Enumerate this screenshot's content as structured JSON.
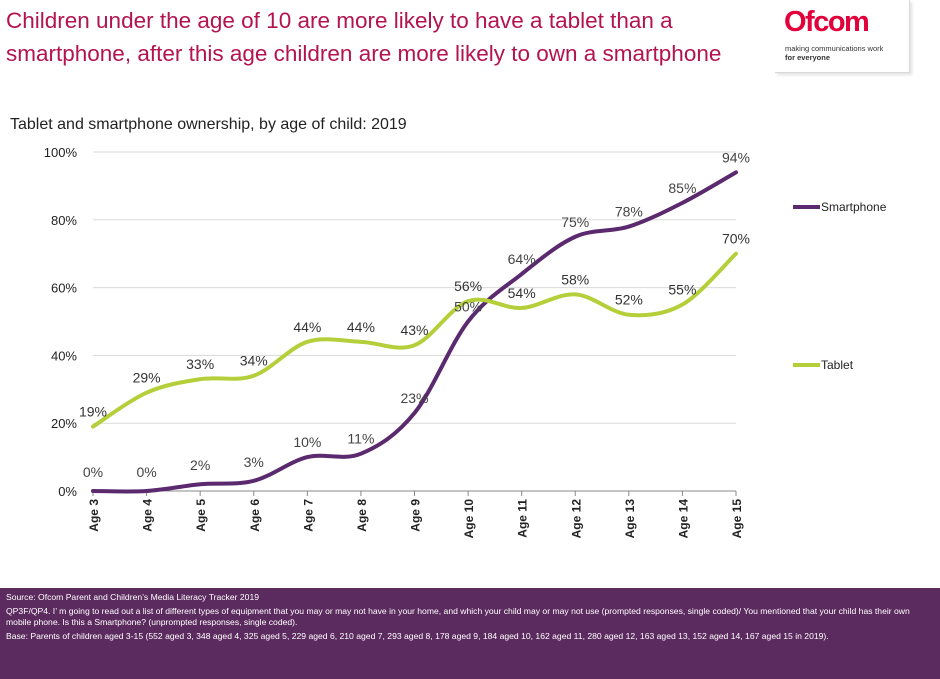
{
  "header": {
    "headline": "Children under the age of 10 are more likely to have a tablet than a smartphone, after this age children are more likely to own a smartphone"
  },
  "logo": {
    "wordmark": "Ofcom",
    "tagline_line1": "making communications work",
    "tagline_line2": "for everyone"
  },
  "chart_data": {
    "type": "line",
    "title": "Tablet and smartphone ownership, by age of child: 2019",
    "categories": [
      "Age 3",
      "Age 4",
      "Age 5",
      "Age 6",
      "Age 7",
      "Age 8",
      "Age 9",
      "Age 10",
      "Age 11",
      "Age 12",
      "Age 13",
      "Age 14",
      "Age 15"
    ],
    "series": [
      {
        "name": "Smartphone",
        "color": "#5b2a6e",
        "values": [
          0,
          0,
          2,
          3,
          10,
          11,
          23,
          50,
          64,
          75,
          78,
          85,
          94
        ]
      },
      {
        "name": "Tablet",
        "color": "#b5cf3b",
        "values": [
          19,
          29,
          33,
          34,
          44,
          44,
          43,
          56,
          54,
          58,
          52,
          55,
          70
        ]
      }
    ],
    "ylim": [
      0,
      100
    ],
    "yticks": [
      "0%",
      "20%",
      "40%",
      "60%",
      "80%",
      "100%"
    ],
    "grid": true,
    "legend": "right, at line ends"
  },
  "footer": {
    "source": "Source: Ofcom Parent and Children’s Media Literacy Tracker 2019",
    "question": "QP3F/QP4. I’ m going to read out a list of different types of equipment that you may or may not have in your home, and which your child may or may not use (prompted responses, single coded)/ You mentioned that your child has their own mobile phone. Is this a Smartphone? (unprompted responses, single coded).",
    "base": "Base: Parents of children aged 3-15 (552 aged 3, 348 aged 4, 325 aged 5, 229 aged 6, 210 aged 7, 293 aged 8, 178 aged 9, 184 aged 10, 162 aged 11, 280 aged 12, 163 aged 13, 152 aged 14, 167 aged 15 in 2019)."
  }
}
